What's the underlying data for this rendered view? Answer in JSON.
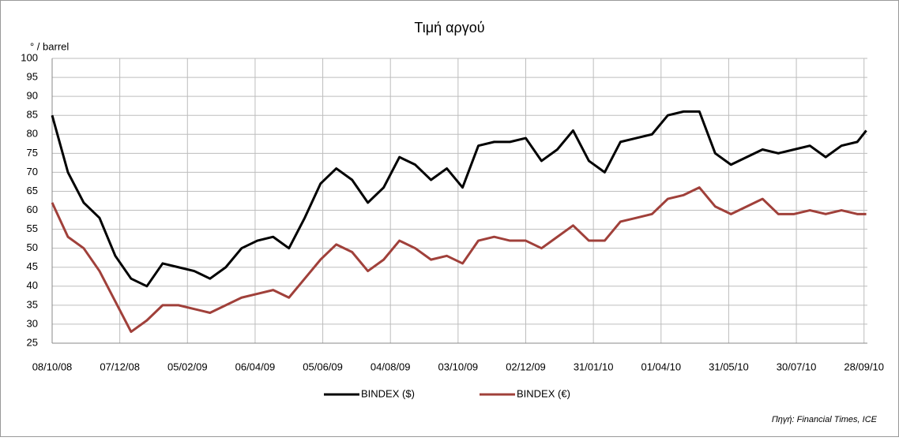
{
  "chart_data": {
    "type": "line",
    "title": "Τιμή αργού",
    "y_axis_label": "° / barrel",
    "source": "Πηγή: Financial Times, ICE",
    "x": [
      "08/10/08",
      "22/10/08",
      "05/11/08",
      "19/11/08",
      "03/12/08",
      "17/12/08",
      "31/12/08",
      "14/01/09",
      "28/01/09",
      "11/02/09",
      "25/02/09",
      "11/03/09",
      "25/03/09",
      "08/04/09",
      "22/04/09",
      "06/05/09",
      "20/05/09",
      "03/06/09",
      "17/06/09",
      "01/07/09",
      "15/07/09",
      "29/07/09",
      "12/08/09",
      "26/08/09",
      "09/09/09",
      "23/09/09",
      "07/10/09",
      "21/10/09",
      "04/11/09",
      "18/11/09",
      "02/12/09",
      "16/12/09",
      "30/12/09",
      "13/01/10",
      "27/01/10",
      "10/02/10",
      "24/02/10",
      "10/03/10",
      "24/03/10",
      "07/04/10",
      "21/04/10",
      "05/05/10",
      "19/05/10",
      "02/06/10",
      "16/06/10",
      "30/06/10",
      "14/07/10",
      "28/07/10",
      "11/08/10",
      "25/08/10",
      "08/09/10",
      "22/09/10",
      "30/09/10"
    ],
    "series": [
      {
        "name": "BINDEX ($)",
        "color": "#000000",
        "values": [
          85,
          70,
          62,
          58,
          48,
          42,
          40,
          46,
          45,
          44,
          42,
          45,
          50,
          52,
          53,
          50,
          58,
          67,
          71,
          68,
          62,
          66,
          74,
          72,
          68,
          71,
          66,
          77,
          78,
          78,
          79,
          73,
          76,
          81,
          73,
          70,
          78,
          79,
          80,
          85,
          86,
          86,
          75,
          72,
          74,
          76,
          75,
          76,
          77,
          74,
          77,
          78,
          81
        ]
      },
      {
        "name": "BINDEX (€)",
        "color": "#a0403a",
        "values": [
          62,
          53,
          50,
          44,
          36,
          28,
          31,
          35,
          35,
          34,
          33,
          35,
          37,
          38,
          39,
          37,
          42,
          47,
          51,
          49,
          44,
          47,
          52,
          50,
          47,
          48,
          46,
          52,
          53,
          52,
          52,
          50,
          53,
          56,
          52,
          52,
          57,
          58,
          59,
          63,
          64,
          66,
          61,
          59,
          61,
          63,
          59,
          59,
          60,
          59,
          60,
          59,
          59
        ]
      }
    ],
    "xlim": [
      "08/10/08",
      "01/10/10"
    ],
    "xticks": [
      "08/10/08",
      "07/12/08",
      "05/02/09",
      "06/04/09",
      "05/06/09",
      "04/08/09",
      "03/10/09",
      "02/12/09",
      "31/01/10",
      "01/04/10",
      "31/05/10",
      "30/07/10",
      "28/09/10"
    ],
    "ylim": [
      25,
      100
    ],
    "yticks": [
      25,
      30,
      35,
      40,
      45,
      50,
      55,
      60,
      65,
      70,
      75,
      80,
      85,
      90,
      95,
      100
    ],
    "grid": true,
    "legend": "bottom"
  }
}
